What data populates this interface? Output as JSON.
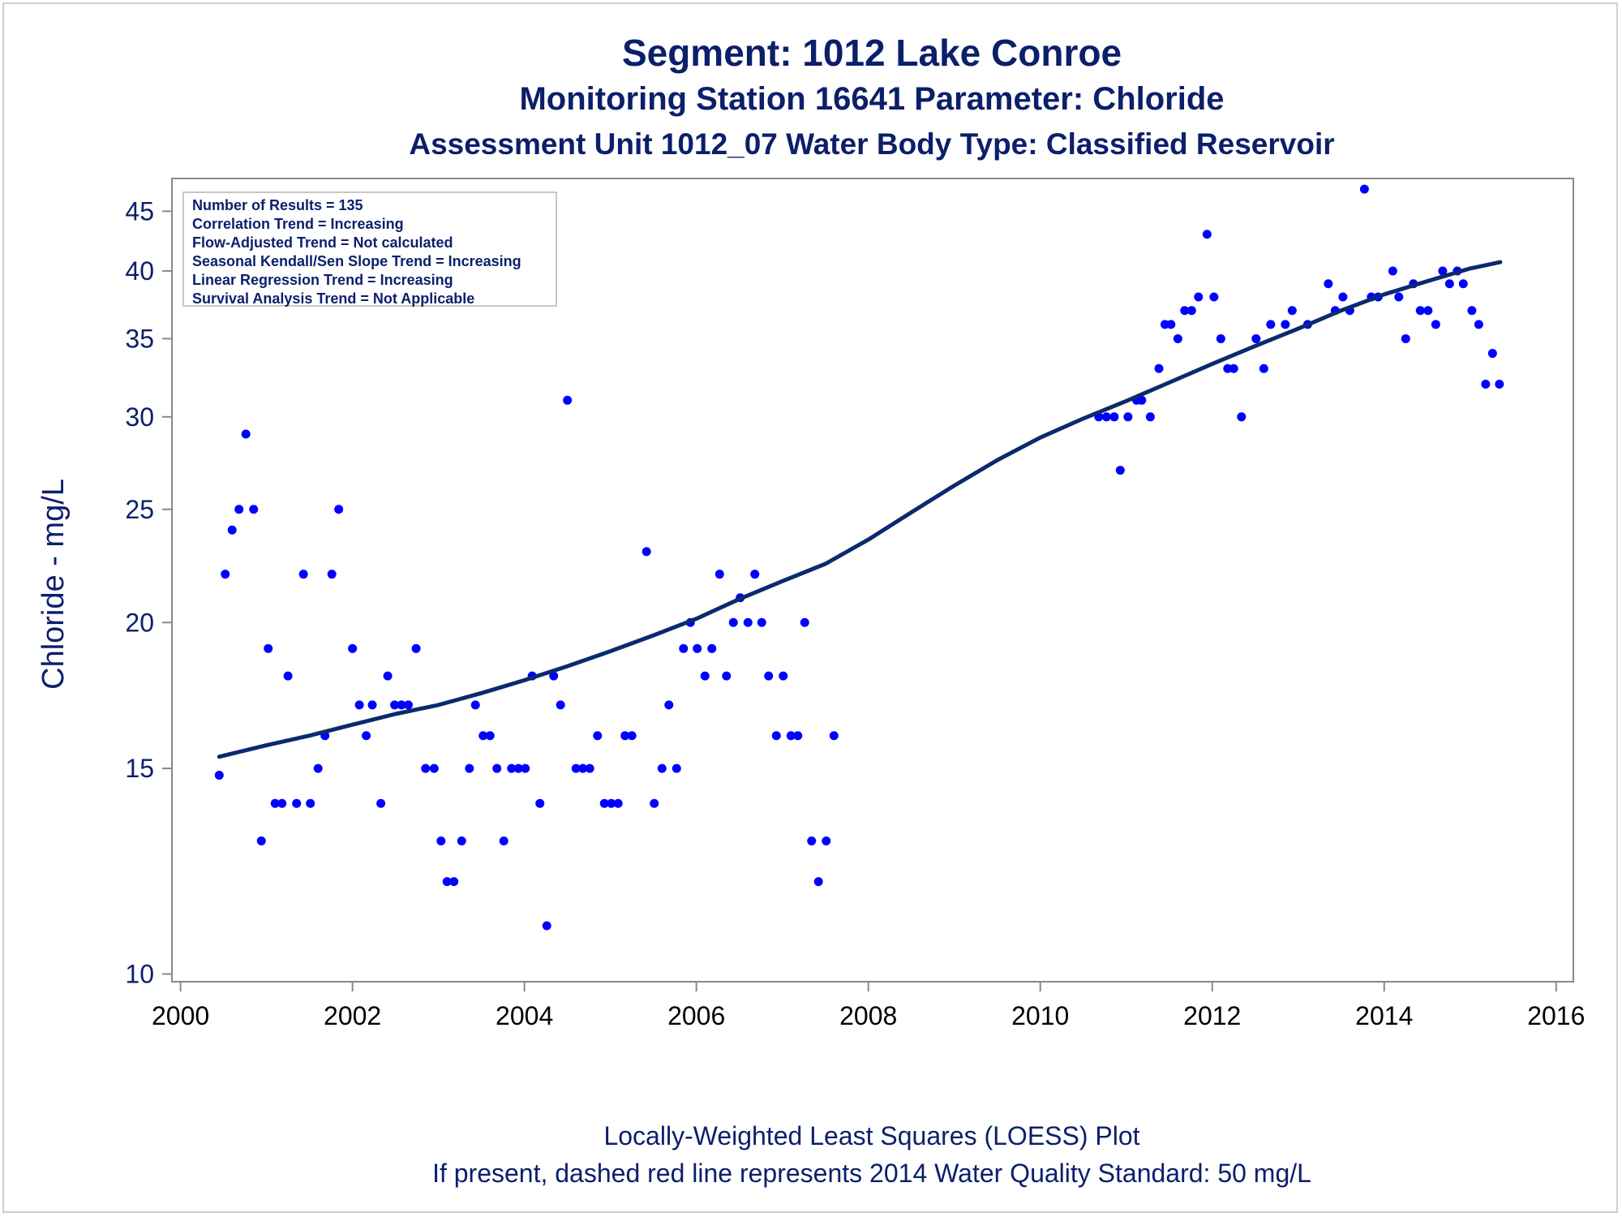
{
  "titles": {
    "line1": "Segment: 1012  Lake Conroe",
    "line2": "Monitoring Station 16641 Parameter: Chloride",
    "line3": "Assessment Unit 1012_07   Water Body Type: Classified Reservoir"
  },
  "legend": [
    "Number of Results = 135",
    "Correlation Trend = Increasing",
    "Flow-Adjusted Trend = Not calculated",
    "Seasonal Kendall/Sen Slope Trend = Increasing",
    "Linear Regression Trend = Increasing",
    "Survival Analysis Trend = Not Applicable"
  ],
  "footer": {
    "line1": "Locally-Weighted Least Squares (LOESS) Plot",
    "line2": "If present, dashed red line represents 2014 Water Quality Standard: 50     mg/L"
  },
  "colors": {
    "text": "#0b1f6b",
    "points": "#0000ff",
    "loess": "#0b2a6e",
    "axis": "#888888"
  },
  "chart_data": {
    "type": "scatter",
    "ylabel": "Chloride - mg/L",
    "y_scale": "log",
    "xlim": [
      1999.9,
      2016.2
    ],
    "ylim": [
      9.85,
      48
    ],
    "x_ticks": [
      2000,
      2002,
      2004,
      2006,
      2008,
      2010,
      2012,
      2014,
      2016
    ],
    "y_ticks": [
      10,
      15,
      20,
      25,
      30,
      35,
      40,
      45
    ],
    "points": [
      [
        2000.45,
        14.8
      ],
      [
        2000.52,
        22
      ],
      [
        2000.6,
        24
      ],
      [
        2000.68,
        25
      ],
      [
        2000.76,
        29
      ],
      [
        2000.85,
        25
      ],
      [
        2000.94,
        13
      ],
      [
        2001.02,
        19
      ],
      [
        2001.1,
        14
      ],
      [
        2001.18,
        14
      ],
      [
        2001.25,
        18
      ],
      [
        2001.35,
        14
      ],
      [
        2001.43,
        22
      ],
      [
        2001.51,
        14
      ],
      [
        2001.6,
        15
      ],
      [
        2001.68,
        16
      ],
      [
        2001.76,
        22
      ],
      [
        2001.84,
        25
      ],
      [
        2002.0,
        19
      ],
      [
        2002.08,
        17
      ],
      [
        2002.16,
        16
      ],
      [
        2002.23,
        17
      ],
      [
        2002.33,
        14
      ],
      [
        2002.41,
        18
      ],
      [
        2002.49,
        17
      ],
      [
        2002.57,
        17
      ],
      [
        2002.65,
        17
      ],
      [
        2002.74,
        19
      ],
      [
        2002.85,
        15
      ],
      [
        2002.95,
        15
      ],
      [
        2003.03,
        13
      ],
      [
        2003.1,
        12
      ],
      [
        2003.18,
        12
      ],
      [
        2003.27,
        13
      ],
      [
        2003.36,
        15
      ],
      [
        2003.43,
        17
      ],
      [
        2003.52,
        16
      ],
      [
        2003.6,
        16
      ],
      [
        2003.68,
        15
      ],
      [
        2003.76,
        13
      ],
      [
        2003.85,
        15
      ],
      [
        2003.93,
        15
      ],
      [
        2004.01,
        15
      ],
      [
        2004.09,
        18
      ],
      [
        2004.18,
        14
      ],
      [
        2004.26,
        11
      ],
      [
        2004.34,
        18
      ],
      [
        2004.42,
        17
      ],
      [
        2004.5,
        31
      ],
      [
        2004.6,
        15
      ],
      [
        2004.68,
        15
      ],
      [
        2004.76,
        15
      ],
      [
        2004.85,
        16
      ],
      [
        2004.93,
        14
      ],
      [
        2005.01,
        14
      ],
      [
        2005.09,
        14
      ],
      [
        2005.17,
        16
      ],
      [
        2005.25,
        16
      ],
      [
        2005.42,
        23
      ],
      [
        2005.51,
        14
      ],
      [
        2005.6,
        15
      ],
      [
        2005.68,
        17
      ],
      [
        2005.77,
        15
      ],
      [
        2005.85,
        19
      ],
      [
        2005.93,
        20
      ],
      [
        2006.01,
        19
      ],
      [
        2006.1,
        18
      ],
      [
        2006.18,
        19
      ],
      [
        2006.27,
        22
      ],
      [
        2006.35,
        18
      ],
      [
        2006.43,
        20
      ],
      [
        2006.51,
        21
      ],
      [
        2006.6,
        20
      ],
      [
        2006.68,
        22
      ],
      [
        2006.76,
        20
      ],
      [
        2006.84,
        18
      ],
      [
        2006.93,
        16
      ],
      [
        2007.01,
        18
      ],
      [
        2007.1,
        16
      ],
      [
        2007.18,
        16
      ],
      [
        2007.26,
        20
      ],
      [
        2007.34,
        13
      ],
      [
        2007.42,
        12
      ],
      [
        2007.51,
        13
      ],
      [
        2007.6,
        16
      ],
      [
        2010.68,
        30
      ],
      [
        2010.77,
        30
      ],
      [
        2010.86,
        30
      ],
      [
        2010.93,
        27
      ],
      [
        2011.02,
        30
      ],
      [
        2011.12,
        31
      ],
      [
        2011.18,
        31
      ],
      [
        2011.28,
        30
      ],
      [
        2011.38,
        33
      ],
      [
        2011.45,
        36
      ],
      [
        2011.52,
        36
      ],
      [
        2011.6,
        35
      ],
      [
        2011.68,
        37
      ],
      [
        2011.76,
        37
      ],
      [
        2011.84,
        38
      ],
      [
        2011.94,
        43
      ],
      [
        2012.02,
        38
      ],
      [
        2012.1,
        35
      ],
      [
        2012.18,
        33
      ],
      [
        2012.25,
        33
      ],
      [
        2012.34,
        30
      ],
      [
        2012.51,
        35
      ],
      [
        2012.6,
        33
      ],
      [
        2012.68,
        36
      ],
      [
        2012.85,
        36
      ],
      [
        2012.93,
        37
      ],
      [
        2013.11,
        36
      ],
      [
        2013.35,
        39
      ],
      [
        2013.43,
        37
      ],
      [
        2013.52,
        38
      ],
      [
        2013.6,
        37
      ],
      [
        2013.77,
        47
      ],
      [
        2013.85,
        38
      ],
      [
        2013.93,
        38
      ],
      [
        2014.1,
        40
      ],
      [
        2014.17,
        38
      ],
      [
        2014.25,
        35
      ],
      [
        2014.34,
        39
      ],
      [
        2014.42,
        37
      ],
      [
        2014.51,
        37
      ],
      [
        2014.6,
        36
      ],
      [
        2014.68,
        40
      ],
      [
        2014.76,
        39
      ],
      [
        2014.85,
        40
      ],
      [
        2014.92,
        39
      ],
      [
        2015.02,
        37
      ],
      [
        2015.1,
        36
      ],
      [
        2015.18,
        32
      ],
      [
        2015.26,
        34
      ],
      [
        2015.34,
        32
      ]
    ],
    "loess": [
      [
        2000.45,
        15.35
      ],
      [
        2001.0,
        15.7
      ],
      [
        2001.5,
        16.0
      ],
      [
        2002.0,
        16.35
      ],
      [
        2002.5,
        16.7
      ],
      [
        2003.0,
        17.0
      ],
      [
        2003.5,
        17.4
      ],
      [
        2004.0,
        17.85
      ],
      [
        2004.5,
        18.35
      ],
      [
        2005.0,
        18.9
      ],
      [
        2005.5,
        19.5
      ],
      [
        2006.0,
        20.15
      ],
      [
        2006.5,
        20.95
      ],
      [
        2007.0,
        21.7
      ],
      [
        2007.5,
        22.45
      ],
      [
        2008.0,
        23.55
      ],
      [
        2008.5,
        24.85
      ],
      [
        2009.0,
        26.2
      ],
      [
        2009.5,
        27.55
      ],
      [
        2010.0,
        28.8
      ],
      [
        2010.5,
        29.9
      ],
      [
        2011.0,
        30.95
      ],
      [
        2011.5,
        32.1
      ],
      [
        2012.0,
        33.3
      ],
      [
        2012.5,
        34.5
      ],
      [
        2013.0,
        35.7
      ],
      [
        2013.5,
        37.0
      ],
      [
        2014.0,
        38.2
      ],
      [
        2014.5,
        39.2
      ],
      [
        2015.0,
        40.2
      ],
      [
        2015.35,
        40.7
      ]
    ]
  }
}
